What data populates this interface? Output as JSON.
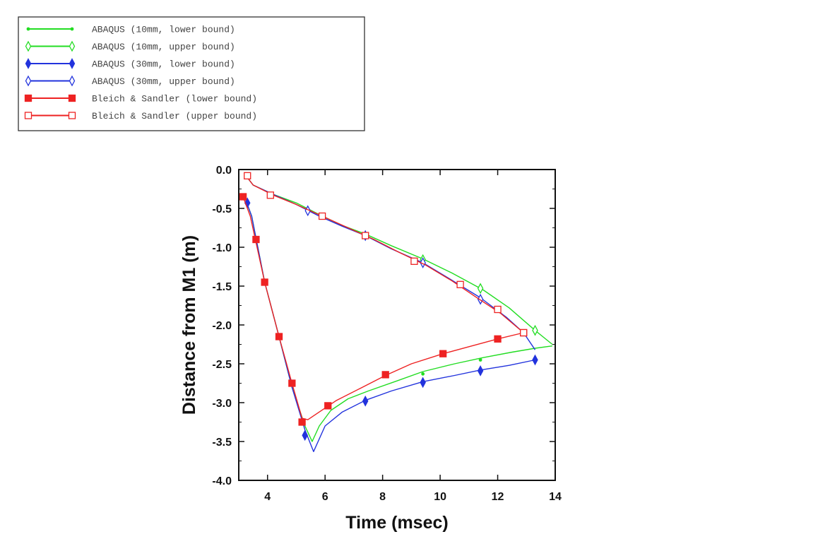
{
  "chart_data": {
    "type": "line",
    "title": "",
    "xlabel": "Time (msec)",
    "ylabel": "Distance from M1 (m)",
    "xlim": [
      3,
      14
    ],
    "ylim": [
      -4.0,
      0.0
    ],
    "xticks": [
      4,
      6,
      8,
      10,
      12,
      14
    ],
    "yticks": [
      0.0,
      -0.5,
      -1.0,
      -1.5,
      -2.0,
      -2.5,
      -3.0,
      -3.5,
      -4.0
    ],
    "ytick_labels": [
      "0.0",
      "-0.5",
      "-1.0",
      "-1.5",
      "-2.0",
      "-2.5",
      "-3.0",
      "-3.5",
      "-4.0"
    ],
    "grid": false,
    "legend_position": "top-left, outside plot",
    "series": [
      {
        "name": "ABAQUS (10mm, lower bound)",
        "color": "#22dd22",
        "marker": "dot",
        "x": [
          3.2,
          3.45,
          3.9,
          4.4,
          4.85,
          5.3,
          5.55,
          5.8,
          6.2,
          6.8,
          7.5,
          8.5,
          9.4,
          10.5,
          11.5,
          12.5,
          13.3,
          13.9
        ],
        "y": [
          -0.35,
          -0.6,
          -1.45,
          -2.15,
          -2.8,
          -3.3,
          -3.5,
          -3.3,
          -3.1,
          -2.95,
          -2.85,
          -2.72,
          -2.6,
          -2.5,
          -2.42,
          -2.35,
          -2.3,
          -2.27
        ],
        "marker_x": [
          9.4,
          11.4
        ],
        "marker_y": [
          -2.63,
          -2.45
        ]
      },
      {
        "name": "ABAQUS (10mm, upper bound)",
        "color": "#22dd22",
        "marker": "open-diamond",
        "x": [
          3.25,
          3.5,
          4.2,
          5.0,
          5.8,
          6.6,
          7.4,
          8.3,
          9.4,
          10.4,
          11.5,
          12.4,
          13.3,
          13.9
        ],
        "y": [
          -0.08,
          -0.2,
          -0.32,
          -0.43,
          -0.58,
          -0.72,
          -0.83,
          -0.98,
          -1.15,
          -1.33,
          -1.55,
          -1.78,
          -2.07,
          -2.25
        ],
        "marker_x": [
          9.4,
          11.4,
          13.3
        ],
        "marker_y": [
          -1.16,
          -1.53,
          -2.07
        ]
      },
      {
        "name": "ABAQUS (30mm, lower bound)",
        "color": "#2233dd",
        "marker": "filled-diamond",
        "x": [
          3.2,
          3.45,
          3.9,
          4.4,
          4.85,
          5.3,
          5.6,
          6.0,
          6.6,
          7.4,
          8.3,
          9.4,
          10.5,
          11.4,
          12.4,
          13.3
        ],
        "y": [
          -0.35,
          -0.6,
          -1.45,
          -2.15,
          -2.8,
          -3.35,
          -3.63,
          -3.3,
          -3.12,
          -2.97,
          -2.85,
          -2.73,
          -2.65,
          -2.58,
          -2.52,
          -2.45
        ],
        "marker_x": [
          3.3,
          5.3,
          7.4,
          9.4,
          11.4,
          13.3
        ],
        "marker_y": [
          -0.43,
          -3.42,
          -2.98,
          -2.74,
          -2.59,
          -2.45
        ]
      },
      {
        "name": "ABAQUS (30mm, upper bound)",
        "color": "#2233dd",
        "marker": "open-diamond",
        "x": [
          3.25,
          3.5,
          4.2,
          5.0,
          5.8,
          6.6,
          7.4,
          8.3,
          9.4,
          10.3,
          11.4,
          12.3,
          12.9,
          13.3
        ],
        "y": [
          -0.08,
          -0.2,
          -0.32,
          -0.45,
          -0.6,
          -0.73,
          -0.85,
          -1.02,
          -1.2,
          -1.4,
          -1.65,
          -1.9,
          -2.1,
          -2.32
        ],
        "marker_x": [
          5.4,
          7.4,
          9.4,
          11.4
        ],
        "marker_y": [
          -0.53,
          -0.85,
          -1.2,
          -1.67
        ]
      },
      {
        "name": "Bleich & Sandler (lower bound)",
        "color": "#ee2222",
        "marker": "filled-square",
        "x": [
          3.15,
          3.4,
          3.9,
          4.4,
          4.85,
          5.2,
          5.4,
          5.8,
          6.4,
          7.2,
          8.1,
          9.0,
          10.1,
          11.0,
          12.0,
          12.9
        ],
        "y": [
          -0.35,
          -0.6,
          -1.45,
          -2.15,
          -2.75,
          -3.2,
          -3.22,
          -3.12,
          -2.97,
          -2.82,
          -2.65,
          -2.5,
          -2.37,
          -2.28,
          -2.18,
          -2.1
        ],
        "marker_x": [
          3.15,
          3.6,
          3.9,
          4.4,
          4.85,
          5.2,
          6.1,
          8.1,
          10.1,
          12.0,
          12.9
        ],
        "marker_y": [
          -0.35,
          -0.9,
          -1.45,
          -2.15,
          -2.75,
          -3.25,
          -3.04,
          -2.64,
          -2.37,
          -2.18,
          -2.1
        ]
      },
      {
        "name": "Bleich & Sandler (upper bound)",
        "color": "#ee2222",
        "marker": "open-square",
        "x": [
          3.25,
          3.5,
          4.2,
          5.0,
          5.9,
          6.8,
          7.7,
          8.6,
          9.5,
          10.4,
          11.2,
          12.1,
          12.9
        ],
        "y": [
          -0.08,
          -0.2,
          -0.33,
          -0.45,
          -0.6,
          -0.75,
          -0.9,
          -1.07,
          -1.23,
          -1.43,
          -1.63,
          -1.85,
          -2.1
        ],
        "marker_x": [
          3.3,
          4.1,
          5.9,
          7.4,
          9.1,
          10.7,
          12.0,
          12.9
        ],
        "marker_y": [
          -0.08,
          -0.33,
          -0.6,
          -0.85,
          -1.18,
          -1.48,
          -1.8,
          -2.1
        ]
      }
    ]
  }
}
